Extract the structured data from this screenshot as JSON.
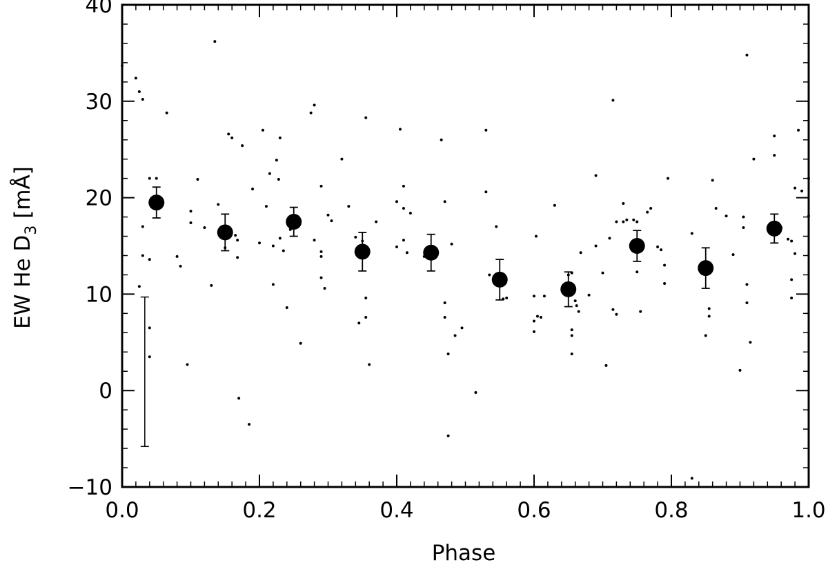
{
  "chart_data": {
    "type": "scatter",
    "title": "",
    "xlabel": "Phase",
    "ylabel_main": "EW He D",
    "ylabel_sub": "3",
    "ylabel_unit": " [mÅ]",
    "xlim": [
      0.0,
      1.0
    ],
    "ylim": [
      -10,
      40
    ],
    "xticks": [
      0.0,
      0.2,
      0.4,
      0.6,
      0.8,
      1.0
    ],
    "xtick_labels": [
      "0.0",
      "0.2",
      "0.4",
      "0.6",
      "0.8",
      "1.0"
    ],
    "yticks": [
      -10,
      0,
      10,
      20,
      30,
      40
    ],
    "ytick_labels": [
      "−10",
      "0",
      "10",
      "20",
      "30",
      "40"
    ],
    "grid": false,
    "colors": {
      "marker": "#000000",
      "axes": "#000000",
      "background": "#ffffff"
    },
    "series": [
      {
        "marker": "small-dot",
        "points": [
          [
            0.0,
            33.7
          ],
          [
            0.02,
            32.4
          ],
          [
            0.025,
            31.0
          ],
          [
            0.03,
            30.2
          ],
          [
            0.04,
            22.0
          ],
          [
            0.05,
            22.0
          ],
          [
            0.03,
            17.0
          ],
          [
            0.03,
            14.0
          ],
          [
            0.04,
            13.6
          ],
          [
            0.025,
            10.8
          ],
          [
            0.04,
            6.5
          ],
          [
            0.04,
            3.5
          ],
          [
            0.065,
            28.8
          ],
          [
            0.08,
            13.9
          ],
          [
            0.085,
            12.9
          ],
          [
            0.095,
            2.7
          ],
          [
            0.1,
            18.6
          ],
          [
            0.1,
            17.4
          ],
          [
            0.11,
            21.9
          ],
          [
            0.12,
            16.9
          ],
          [
            0.135,
            36.2
          ],
          [
            0.13,
            10.9
          ],
          [
            0.14,
            19.3
          ],
          [
            0.15,
            14.8
          ],
          [
            0.155,
            26.6
          ],
          [
            0.16,
            26.2
          ],
          [
            0.165,
            16.1
          ],
          [
            0.168,
            15.6
          ],
          [
            0.168,
            13.8
          ],
          [
            0.17,
            -0.8
          ],
          [
            0.175,
            25.4
          ],
          [
            0.185,
            -3.5
          ],
          [
            0.19,
            20.9
          ],
          [
            0.2,
            15.3
          ],
          [
            0.205,
            27.0
          ],
          [
            0.21,
            19.1
          ],
          [
            0.215,
            22.5
          ],
          [
            0.22,
            15.0
          ],
          [
            0.22,
            11.0
          ],
          [
            0.225,
            23.9
          ],
          [
            0.228,
            21.9
          ],
          [
            0.23,
            26.2
          ],
          [
            0.23,
            15.8
          ],
          [
            0.235,
            14.5
          ],
          [
            0.24,
            8.6
          ],
          [
            0.245,
            16.7
          ],
          [
            0.25,
            17.7
          ],
          [
            0.26,
            4.9
          ],
          [
            0.275,
            28.8
          ],
          [
            0.28,
            29.6
          ],
          [
            0.28,
            15.6
          ],
          [
            0.29,
            21.2
          ],
          [
            0.29,
            14.4
          ],
          [
            0.29,
            13.9
          ],
          [
            0.29,
            11.7
          ],
          [
            0.295,
            10.6
          ],
          [
            0.3,
            18.2
          ],
          [
            0.305,
            17.6
          ],
          [
            0.32,
            24.0
          ],
          [
            0.33,
            19.1
          ],
          [
            0.34,
            15.9
          ],
          [
            0.35,
            15.5
          ],
          [
            0.345,
            7.0
          ],
          [
            0.355,
            28.3
          ],
          [
            0.355,
            9.6
          ],
          [
            0.355,
            7.6
          ],
          [
            0.36,
            2.7
          ],
          [
            0.37,
            17.5
          ],
          [
            0.405,
            27.1
          ],
          [
            0.4,
            19.6
          ],
          [
            0.41,
            21.2
          ],
          [
            0.41,
            18.9
          ],
          [
            0.41,
            15.6
          ],
          [
            0.415,
            14.3
          ],
          [
            0.42,
            18.4
          ],
          [
            0.4,
            14.9
          ],
          [
            0.44,
            13.9
          ],
          [
            0.465,
            26.0
          ],
          [
            0.47,
            19.6
          ],
          [
            0.47,
            9.1
          ],
          [
            0.47,
            7.6
          ],
          [
            0.475,
            3.8
          ],
          [
            0.475,
            -4.7
          ],
          [
            0.48,
            15.2
          ],
          [
            0.485,
            5.7
          ],
          [
            0.495,
            6.5
          ],
          [
            0.515,
            -0.2
          ],
          [
            0.53,
            27.0
          ],
          [
            0.53,
            20.6
          ],
          [
            0.535,
            12.0
          ],
          [
            0.545,
            17.0
          ],
          [
            0.55,
            11.3
          ],
          [
            0.555,
            9.5
          ],
          [
            0.56,
            9.6
          ],
          [
            0.6,
            9.8
          ],
          [
            0.6,
            7.2
          ],
          [
            0.6,
            6.1
          ],
          [
            0.603,
            16.0
          ],
          [
            0.605,
            7.7
          ],
          [
            0.61,
            7.6
          ],
          [
            0.615,
            9.8
          ],
          [
            0.63,
            19.2
          ],
          [
            0.65,
            12.0
          ],
          [
            0.655,
            12.2
          ],
          [
            0.655,
            6.3
          ],
          [
            0.655,
            5.7
          ],
          [
            0.655,
            3.8
          ],
          [
            0.66,
            9.3
          ],
          [
            0.662,
            8.8
          ],
          [
            0.665,
            8.2
          ],
          [
            0.668,
            14.3
          ],
          [
            0.68,
            9.9
          ],
          [
            0.69,
            22.3
          ],
          [
            0.69,
            15.0
          ],
          [
            0.7,
            12.2
          ],
          [
            0.705,
            2.6
          ],
          [
            0.71,
            15.8
          ],
          [
            0.715,
            8.4
          ],
          [
            0.715,
            30.1
          ],
          [
            0.72,
            7.9
          ],
          [
            0.72,
            17.5
          ],
          [
            0.73,
            19.4
          ],
          [
            0.73,
            17.5
          ],
          [
            0.735,
            17.7
          ],
          [
            0.745,
            17.7
          ],
          [
            0.75,
            17.5
          ],
          [
            0.755,
            8.2
          ],
          [
            0.75,
            12.3
          ],
          [
            0.765,
            18.5
          ],
          [
            0.77,
            18.9
          ],
          [
            0.78,
            14.9
          ],
          [
            0.785,
            14.6
          ],
          [
            0.79,
            11.1
          ],
          [
            0.79,
            13.0
          ],
          [
            0.795,
            22.0
          ],
          [
            0.83,
            16.3
          ],
          [
            0.83,
            -9.1
          ],
          [
            0.85,
            13.2
          ],
          [
            0.855,
            8.5
          ],
          [
            0.855,
            7.7
          ],
          [
            0.85,
            5.7
          ],
          [
            0.86,
            21.8
          ],
          [
            0.865,
            18.9
          ],
          [
            0.88,
            18.1
          ],
          [
            0.89,
            14.1
          ],
          [
            0.9,
            2.1
          ],
          [
            0.905,
            18.0
          ],
          [
            0.905,
            16.9
          ],
          [
            0.91,
            34.8
          ],
          [
            0.91,
            11.0
          ],
          [
            0.91,
            9.1
          ],
          [
            0.915,
            5.0
          ],
          [
            0.92,
            24.0
          ],
          [
            0.95,
            26.4
          ],
          [
            0.95,
            24.4
          ],
          [
            0.95,
            16.4
          ],
          [
            0.96,
            16.9
          ],
          [
            0.97,
            15.7
          ],
          [
            0.975,
            15.5
          ],
          [
            0.975,
            11.5
          ],
          [
            0.975,
            9.6
          ],
          [
            0.98,
            21.0
          ],
          [
            0.98,
            14.2
          ],
          [
            0.985,
            27.0
          ],
          [
            0.99,
            20.7
          ],
          [
            1.0,
            22.0
          ],
          [
            1.0,
            18.1
          ]
        ]
      },
      {
        "marker": "large-circle-errorbar",
        "x": [
          0.05,
          0.15,
          0.25,
          0.35,
          0.45,
          0.55,
          0.65,
          0.75,
          0.85,
          0.95
        ],
        "y": [
          19.5,
          16.4,
          17.5,
          14.4,
          14.3,
          11.5,
          10.5,
          15.0,
          12.7,
          16.8
        ],
        "err": [
          1.6,
          1.9,
          1.5,
          2.0,
          1.9,
          2.1,
          1.8,
          1.6,
          2.1,
          1.5
        ]
      }
    ],
    "annotations": [
      {
        "type": "errorbar-scale",
        "x": 0.033,
        "y_low": -5.8,
        "y_high": 9.7
      }
    ]
  }
}
